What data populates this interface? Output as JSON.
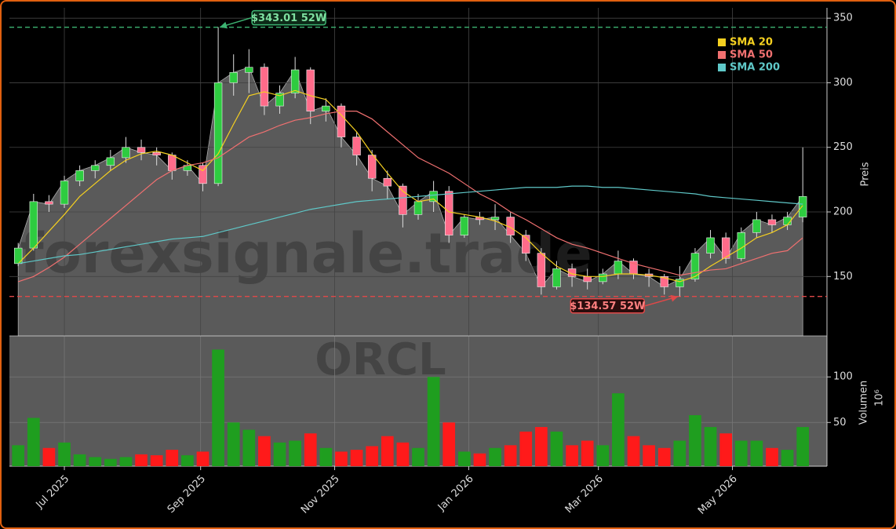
{
  "chart_data": {
    "type": "candlestick",
    "watermark": "forexsignale.trade",
    "symbol": "ORCL",
    "x": [
      -21,
      -14,
      -7,
      0,
      7,
      14,
      21,
      28,
      35,
      42,
      49,
      56,
      63,
      70,
      77,
      84,
      91,
      98,
      105,
      112,
      119,
      126,
      133,
      140,
      147,
      154,
      161,
      168,
      175,
      182,
      189,
      196,
      203,
      210,
      217,
      224,
      231,
      238,
      245,
      252,
      259,
      266,
      273,
      280,
      287,
      294,
      301,
      308,
      315,
      322,
      329,
      336
    ],
    "open": [
      160,
      172,
      208,
      206,
      224,
      232,
      236,
      242,
      250,
      246,
      244,
      232,
      236,
      222,
      300,
      308,
      312,
      282,
      292,
      310,
      278,
      282,
      258,
      244,
      226,
      220,
      198,
      208,
      216,
      182,
      196,
      194,
      196,
      182,
      168,
      142,
      156,
      150,
      146,
      152,
      162,
      152,
      150,
      142,
      148,
      168,
      180,
      164,
      184,
      194,
      190,
      196
    ],
    "high": [
      176,
      214,
      213,
      228,
      236,
      240,
      248,
      258,
      256,
      250,
      246,
      240,
      238,
      343.01,
      322,
      326,
      315,
      298,
      320,
      312,
      288,
      284,
      262,
      248,
      232,
      222,
      214,
      224,
      220,
      198,
      200,
      206,
      200,
      186,
      172,
      162,
      160,
      156,
      156,
      170,
      164,
      156,
      152,
      158,
      172,
      186,
      184,
      188,
      200,
      198,
      200,
      250
    ],
    "low": [
      158,
      170,
      200,
      203,
      220,
      226,
      232,
      238,
      240,
      236,
      225,
      228,
      216,
      220,
      290,
      292,
      275,
      276,
      288,
      268,
      270,
      250,
      236,
      216,
      210,
      188,
      194,
      200,
      176,
      180,
      190,
      186,
      176,
      162,
      136,
      140,
      142,
      140,
      144,
      148,
      148,
      142,
      136,
      134.57,
      146,
      164,
      160,
      162,
      180,
      184,
      186,
      192
    ],
    "close": [
      172,
      208,
      206,
      224,
      232,
      236,
      242,
      250,
      246,
      244,
      232,
      236,
      222,
      300,
      308,
      312,
      282,
      292,
      310,
      278,
      282,
      258,
      244,
      226,
      220,
      198,
      208,
      216,
      182,
      196,
      194,
      196,
      182,
      168,
      142,
      156,
      150,
      146,
      152,
      162,
      152,
      150,
      142,
      148,
      168,
      180,
      164,
      184,
      194,
      190,
      196,
      212
    ],
    "up_color": "#2ecc40",
    "down_color": "#ff6b8a",
    "area_color": "#5a5a5a",
    "series": [
      {
        "name": "SMA 20",
        "color": "#f5d020",
        "values": [
          160,
          172,
          185,
          198,
          212,
          222,
          232,
          240,
          245,
          247,
          244,
          238,
          232,
          245,
          268,
          290,
          293,
          290,
          294,
          290,
          287,
          275,
          262,
          245,
          230,
          216,
          208,
          210,
          200,
          198,
          196,
          193,
          188,
          180,
          168,
          158,
          152,
          150,
          150,
          152,
          152,
          151,
          149,
          146,
          150,
          158,
          165,
          172,
          180,
          184,
          190,
          205
        ]
      },
      {
        "name": "SMA 50",
        "color": "#f07070",
        "values": [
          146,
          150,
          157,
          165,
          175,
          185,
          195,
          205,
          215,
          225,
          232,
          236,
          238,
          242,
          250,
          258,
          262,
          267,
          271,
          273,
          276,
          278,
          278,
          272,
          262,
          252,
          242,
          236,
          230,
          222,
          214,
          208,
          200,
          194,
          187,
          180,
          175,
          172,
          168,
          164,
          160,
          157,
          154,
          151,
          153,
          155,
          156,
          160,
          164,
          168,
          170,
          180
        ]
      },
      {
        "name": "SMA 200",
        "color": "#5fc8c8",
        "values": [
          160,
          162,
          164,
          166,
          167,
          169,
          171,
          173,
          175,
          177,
          179,
          180,
          181,
          184,
          187,
          190,
          193,
          196,
          199,
          202,
          204,
          206,
          208,
          209,
          210,
          211,
          212,
          213,
          214,
          215,
          216,
          217,
          218,
          219,
          219,
          219,
          220,
          220,
          219,
          219,
          218,
          217,
          216,
          215,
          214,
          212,
          211,
          210,
          209,
          208,
          207,
          206
        ]
      }
    ],
    "ylim": [
      104,
      358
    ],
    "yticks": [
      150,
      200,
      250,
      300,
      350
    ],
    "ylabel": "Preis",
    "xlim": [
      -25,
      347
    ],
    "xticks": [
      {
        "value": 0,
        "label": "Jul 2025"
      },
      {
        "value": 62,
        "label": "Sep 2025"
      },
      {
        "value": 123,
        "label": "Nov 2025"
      },
      {
        "value": 184,
        "label": "Jan 2026"
      },
      {
        "value": 243,
        "label": "Mar 2026"
      },
      {
        "value": 304,
        "label": "May 2026"
      }
    ],
    "annotations": [
      {
        "text": "$343.01 52W",
        "value": 343.01,
        "x": 70,
        "color": "#3cb371"
      },
      {
        "text": "$134.57 52W",
        "value": 134.57,
        "x": 280,
        "color": "#e04848"
      }
    ],
    "volume": {
      "values": [
        25,
        55,
        22,
        28,
        15,
        12,
        10,
        12,
        15,
        14,
        20,
        14,
        18,
        130,
        50,
        42,
        35,
        28,
        30,
        38,
        22,
        18,
        20,
        24,
        35,
        28,
        22,
        100,
        50,
        18,
        16,
        22,
        25,
        40,
        45,
        40,
        25,
        30,
        25,
        82,
        35,
        25,
        22,
        30,
        58,
        45,
        38,
        30,
        30,
        22,
        20,
        45
      ],
      "ylim": [
        2,
        145
      ],
      "yticks": [
        50,
        100
      ],
      "label": "Volumen",
      "unit": "10⁶"
    },
    "legend": "upper right",
    "grid": true
  }
}
